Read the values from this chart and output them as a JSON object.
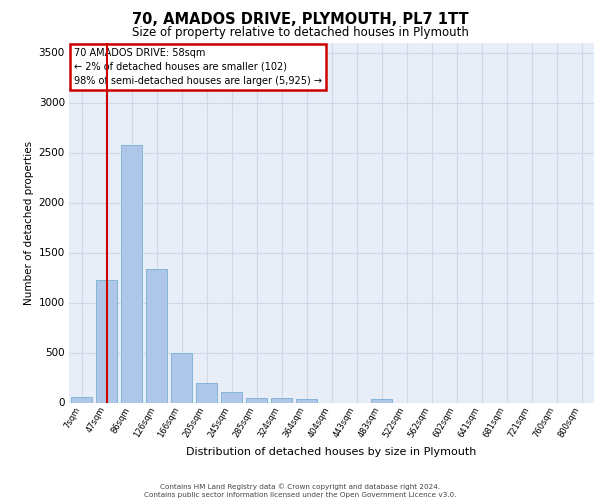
{
  "title1": "70, AMADOS DRIVE, PLYMOUTH, PL7 1TT",
  "title2": "Size of property relative to detached houses in Plymouth",
  "xlabel": "Distribution of detached houses by size in Plymouth",
  "ylabel": "Number of detached properties",
  "bar_labels": [
    "7sqm",
    "47sqm",
    "86sqm",
    "126sqm",
    "166sqm",
    "205sqm",
    "245sqm",
    "285sqm",
    "324sqm",
    "364sqm",
    "404sqm",
    "443sqm",
    "483sqm",
    "522sqm",
    "562sqm",
    "602sqm",
    "641sqm",
    "681sqm",
    "721sqm",
    "760sqm",
    "800sqm"
  ],
  "bar_values": [
    55,
    1230,
    2580,
    1340,
    500,
    195,
    105,
    50,
    45,
    35,
    0,
    0,
    40,
    0,
    0,
    0,
    0,
    0,
    0,
    0,
    0
  ],
  "bar_color": "#aec6e8",
  "bar_edgecolor": "#7aafd4",
  "grid_color": "#d0d8e8",
  "background_color": "#e8eef8",
  "vline_x": 1.0,
  "vline_color": "#cc0000",
  "annotation_line1": "70 AMADOS DRIVE: 58sqm",
  "annotation_line2": "← 2% of detached houses are smaller (102)",
  "annotation_line3": "98% of semi-detached houses are larger (5,925) →",
  "annotation_box_color": "#cc0000",
  "ylim": [
    0,
    3600
  ],
  "yticks": [
    0,
    500,
    1000,
    1500,
    2000,
    2500,
    3000,
    3500
  ],
  "footer1": "Contains HM Land Registry data © Crown copyright and database right 2024.",
  "footer2": "Contains public sector information licensed under the Open Government Licence v3.0."
}
